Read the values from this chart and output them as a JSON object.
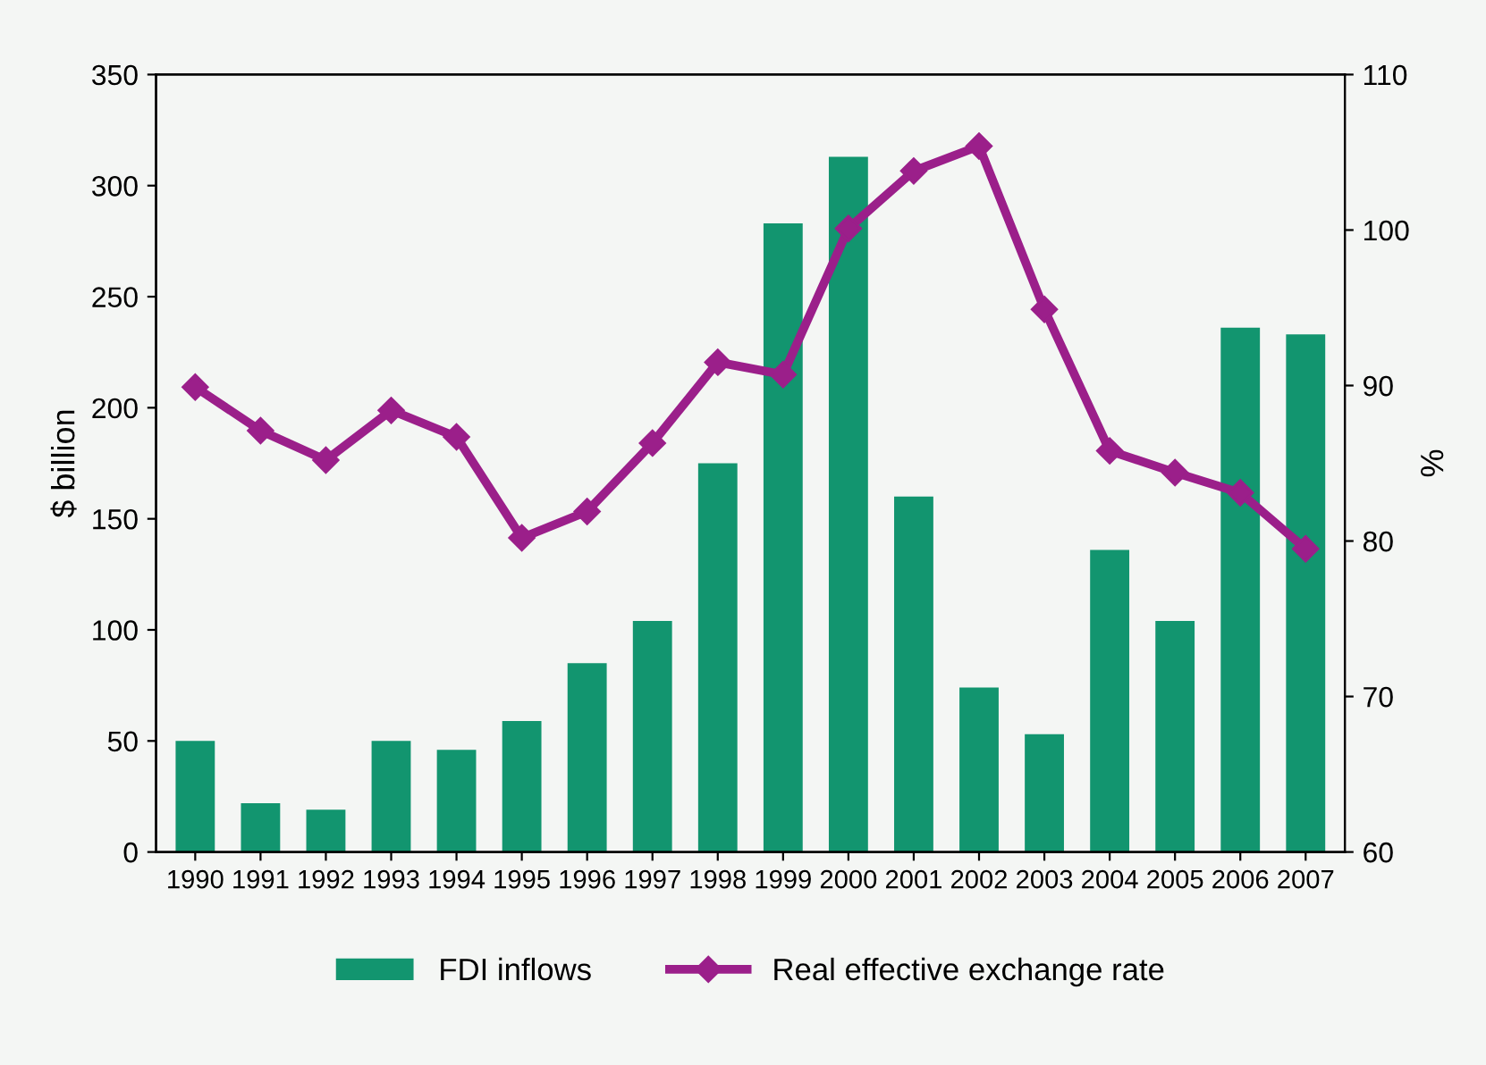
{
  "chart_data": {
    "type": "bar",
    "ylabel": "$ billion",
    "y2label": "%",
    "categories": [
      "1990",
      "1991",
      "1992",
      "1993",
      "1994",
      "1995",
      "1996",
      "1997",
      "1998",
      "1999",
      "2000",
      "2001",
      "2002",
      "2003",
      "2004",
      "2005",
      "2006",
      "2007"
    ],
    "series": [
      {
        "name": "FDI inflows",
        "color": "#12956f",
        "values": [
          50,
          22,
          19,
          50,
          46,
          59,
          85,
          104,
          175,
          283,
          313,
          160,
          74,
          53,
          136,
          104,
          236,
          233
        ]
      },
      {
        "name": "Real effective exchange rate",
        "type": "line",
        "axis": "y2",
        "color": "#9b1f8a",
        "marker": "diamond",
        "line_style": "solid",
        "values": [
          89.9,
          87.1,
          85.2,
          88.4,
          86.7,
          80.2,
          81.9,
          86.3,
          91.5,
          90.7,
          100.1,
          103.8,
          105.4,
          94.9,
          85.8,
          84.4,
          83.1,
          79.5
        ]
      }
    ],
    "ylim": [
      0,
      350
    ],
    "yticks": [
      0,
      50,
      100,
      150,
      200,
      250,
      300,
      350
    ],
    "y2lim": [
      60,
      110
    ],
    "y2ticks": [
      60,
      70,
      80,
      90,
      100,
      110
    ],
    "grid": false,
    "legend": "bottom"
  }
}
